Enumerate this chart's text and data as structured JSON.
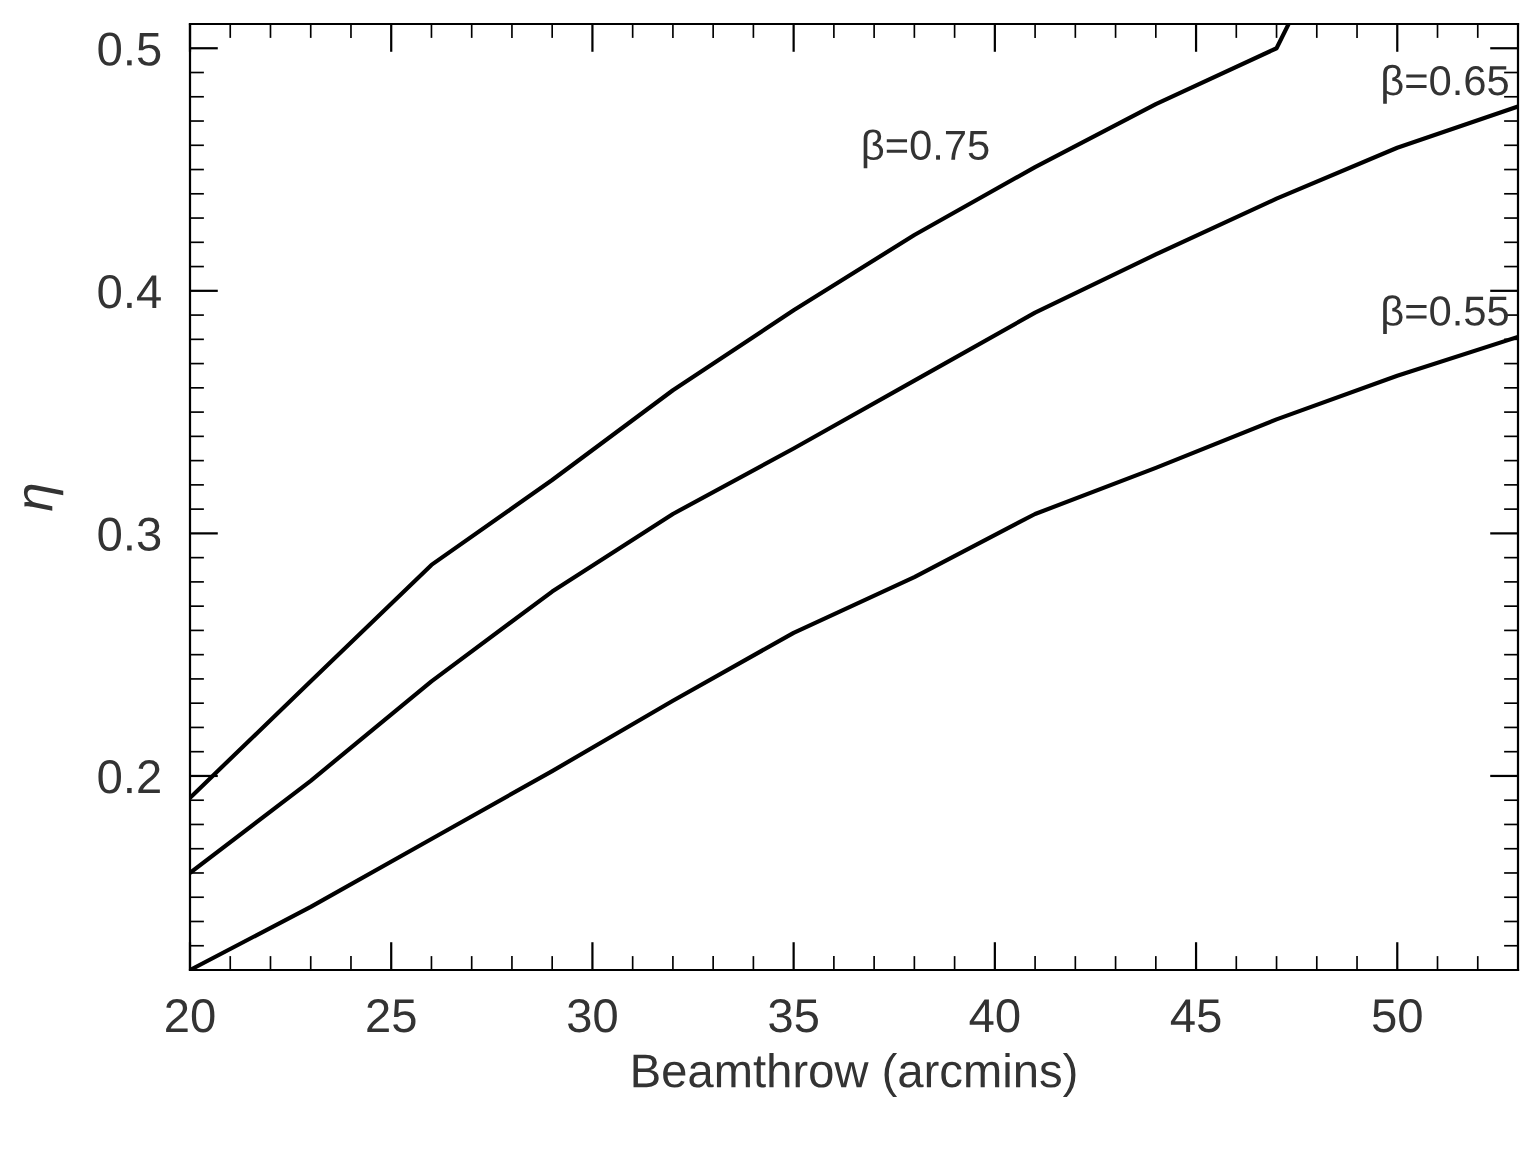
{
  "chart_data": {
    "type": "line",
    "xlabel": "Beamthrow (arcmins)",
    "ylabel": "η",
    "xlim": [
      20,
      53
    ],
    "xticks": [
      20,
      25,
      30,
      35,
      40,
      45,
      50
    ],
    "ylim": [
      0.12,
      0.51
    ],
    "yticks": [
      0.2,
      0.3,
      0.4,
      0.5
    ],
    "grid": false,
    "legend": "right",
    "marker": "none",
    "line_style": "solid",
    "series": [
      {
        "name": "β=0.75",
        "color": "#000000",
        "x": [
          20,
          23,
          26,
          29,
          32,
          35,
          38,
          41,
          44,
          47,
          47.3
        ],
        "values": [
          0.191,
          0.239,
          0.287,
          0.322,
          0.359,
          0.392,
          0.423,
          0.451,
          0.477,
          0.5,
          0.51
        ]
      },
      {
        "name": "β=0.65",
        "color": "#000000",
        "x": [
          20,
          23,
          26,
          29,
          32,
          35,
          38,
          41,
          44,
          47,
          50,
          53
        ],
        "values": [
          0.16,
          0.198,
          0.239,
          0.276,
          0.308,
          0.335,
          0.363,
          0.391,
          0.415,
          0.438,
          0.459,
          0.476
        ]
      },
      {
        "name": "β=0.55",
        "color": "#000000",
        "x": [
          20,
          23,
          26,
          29,
          32,
          35,
          38,
          41,
          44,
          47,
          50,
          53
        ],
        "values": [
          0.12,
          0.146,
          0.174,
          0.202,
          0.231,
          0.259,
          0.282,
          0.308,
          0.327,
          0.347,
          0.365,
          0.381
        ]
      }
    ]
  }
}
